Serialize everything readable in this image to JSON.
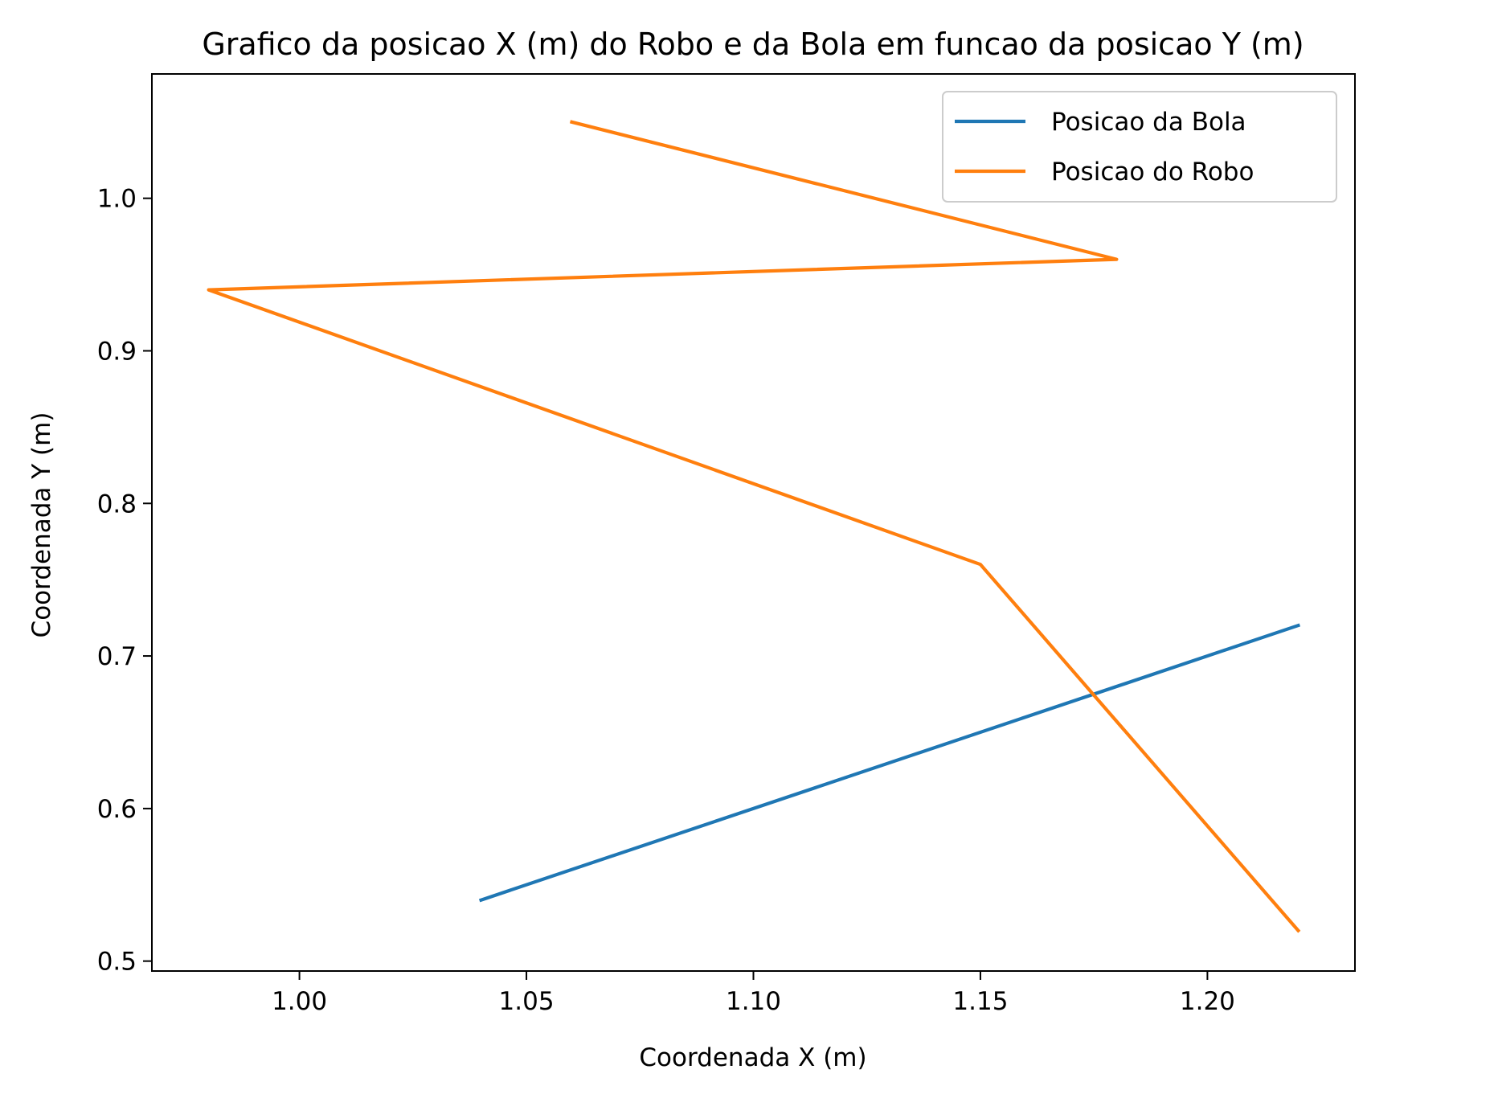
{
  "chart_data": {
    "type": "line",
    "title": "Grafico da posicao X (m) do Robo e da Bola em funcao da posicao Y (m)",
    "xlabel": "Coordenada X (m)",
    "ylabel": "Coordenada Y (m)",
    "xlim": [
      0.9675,
      1.2325
    ],
    "ylim": [
      0.4935,
      1.0815
    ],
    "xticks": [
      1.0,
      1.05,
      1.1,
      1.15,
      1.2
    ],
    "xtick_labels": [
      "1.00",
      "1.05",
      "1.10",
      "1.15",
      "1.20"
    ],
    "yticks": [
      0.5,
      0.6,
      0.7,
      0.8,
      0.9,
      1.0
    ],
    "ytick_labels": [
      "0.5",
      "0.6",
      "0.7",
      "0.8",
      "0.9",
      "1.0"
    ],
    "grid": false,
    "legend_position": "top-right",
    "series": [
      {
        "name": "Posicao da Bola",
        "color": "#1f77b4",
        "x": [
          1.04,
          1.22
        ],
        "y": [
          0.54,
          0.72
        ]
      },
      {
        "name": "Posicao do Robo",
        "color": "#ff7f0e",
        "x": [
          1.06,
          1.18,
          0.98,
          1.15,
          1.22
        ],
        "y": [
          1.05,
          0.96,
          0.94,
          0.76,
          0.52
        ]
      }
    ]
  }
}
